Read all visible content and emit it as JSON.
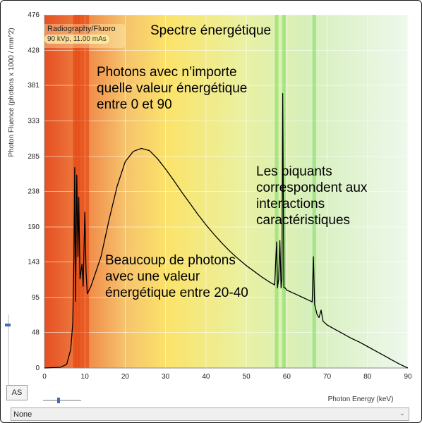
{
  "window": {
    "title": "Spectre énergétique"
  },
  "mode": {
    "title": "Radiography/Fluoro",
    "settings": "90 kVp, 11.00 mAs"
  },
  "annotations": {
    "photons_any": "Photons avec n’importe quelle valeur énergétique entre 0 et 90",
    "spikes": "Les piquants correspondent aux interactions caractéristiques",
    "many_photons": "Beaucoup de photons avec une valeur énergétique entre 20-40"
  },
  "controls": {
    "as_button": "AS",
    "filter_select": {
      "value": "None"
    }
  },
  "chart_data": {
    "type": "line",
    "xlabel": "Photon Energy (keV)",
    "ylabel": "Photon Fluence (photons x 1000 / mm^2)",
    "xlim": [
      0,
      90
    ],
    "ylim": [
      0,
      476
    ],
    "x_ticks": [
      "0",
      "10",
      "20",
      "30",
      "40",
      "50",
      "60",
      "70",
      "80",
      "90"
    ],
    "y_ticks": [
      "0",
      "48",
      "95",
      "143",
      "190",
      "238",
      "285",
      "333",
      "381",
      "428",
      "476"
    ],
    "grid": true,
    "background_gradient": [
      "#e8582a",
      "#f2a460",
      "#fce36b",
      "#d8f0a8",
      "#eef8ea"
    ],
    "highlight_bands_keV": [
      7.5,
      8.2,
      8.9,
      9.7,
      10.6,
      57.5,
      59.3,
      66.8
    ],
    "series": [
      {
        "color": "#000000",
        "points": [
          [
            0,
            0
          ],
          [
            4,
            1
          ],
          [
            5.5,
            5
          ],
          [
            6.5,
            25
          ],
          [
            7,
            60
          ],
          [
            7.3,
            150
          ],
          [
            7.5,
            270
          ],
          [
            7.7,
            90
          ],
          [
            8,
            260
          ],
          [
            8.3,
            150
          ],
          [
            8.5,
            230
          ],
          [
            8.8,
            120
          ],
          [
            9.3,
            140
          ],
          [
            9.6,
            110
          ],
          [
            10,
            210
          ],
          [
            10.3,
            130
          ],
          [
            10.6,
            100
          ],
          [
            11.5,
            110
          ],
          [
            12,
            118
          ],
          [
            14,
            150
          ],
          [
            16,
            200
          ],
          [
            18,
            245
          ],
          [
            20,
            278
          ],
          [
            22,
            292
          ],
          [
            24,
            296
          ],
          [
            26,
            293
          ],
          [
            28,
            282
          ],
          [
            30,
            268
          ],
          [
            32,
            253
          ],
          [
            34,
            237
          ],
          [
            36,
            222
          ],
          [
            38,
            207
          ],
          [
            40,
            193
          ],
          [
            42,
            180
          ],
          [
            44,
            168
          ],
          [
            46,
            157
          ],
          [
            48,
            147
          ],
          [
            50,
            138
          ],
          [
            52,
            130
          ],
          [
            54,
            122
          ],
          [
            56,
            115
          ],
          [
            57,
            112
          ],
          [
            57.5,
            170
          ],
          [
            57.7,
            108
          ],
          [
            58,
            120
          ],
          [
            58.3,
            172
          ],
          [
            58.6,
            108
          ],
          [
            58.8,
            120
          ],
          [
            59,
            370
          ],
          [
            59.3,
            108
          ],
          [
            59.6,
            108
          ],
          [
            60,
            105
          ],
          [
            62,
            100
          ],
          [
            64,
            95
          ],
          [
            66,
            90
          ],
          [
            66.3,
            89
          ],
          [
            66.6,
            150
          ],
          [
            66.9,
            86
          ],
          [
            67.5,
            72
          ],
          [
            68,
            68
          ],
          [
            68.5,
            78
          ],
          [
            69,
            63
          ],
          [
            70,
            58
          ],
          [
            72,
            52
          ],
          [
            74,
            46
          ],
          [
            76,
            40
          ],
          [
            78,
            35
          ],
          [
            80,
            29
          ],
          [
            82,
            23
          ],
          [
            84,
            17
          ],
          [
            86,
            11
          ],
          [
            88,
            5
          ],
          [
            90,
            0
          ]
        ]
      }
    ]
  }
}
